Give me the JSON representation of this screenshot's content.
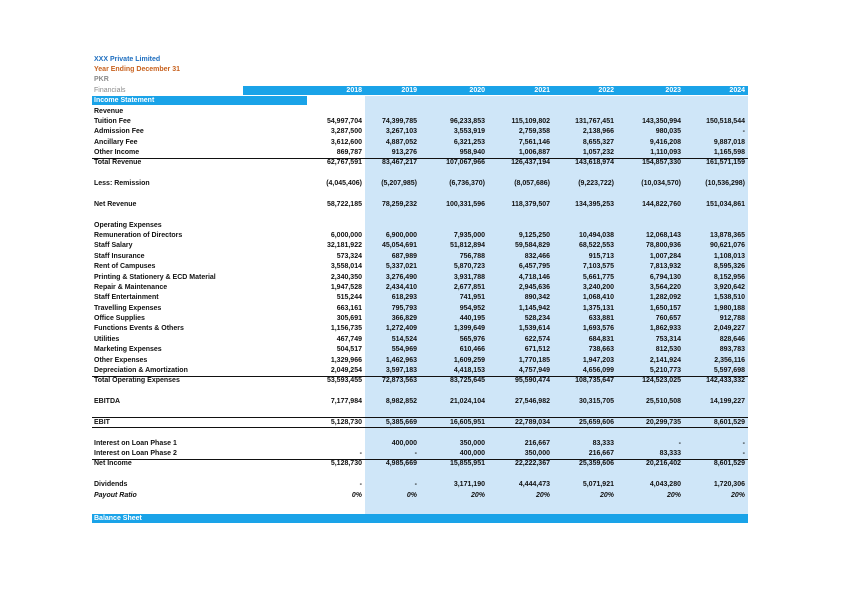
{
  "header": {
    "company": "XXX Private Limited",
    "period": "Year Ending December 31",
    "currency": "PKR"
  },
  "table": {
    "label": "Financials",
    "years": [
      "2018",
      "2019",
      "2020",
      "2021",
      "2022",
      "2023",
      "2024"
    ],
    "section": "Income Statement",
    "rows": [
      {
        "label": "Revenue"
      },
      {
        "label": "Tuition Fee",
        "values": [
          "54,997,704",
          "74,399,785",
          "96,233,853",
          "115,109,802",
          "131,767,451",
          "143,350,994",
          "150,518,544"
        ]
      },
      {
        "label": "Admission Fee",
        "values": [
          "3,287,500",
          "3,267,103",
          "3,553,919",
          "2,759,358",
          "2,138,966",
          "980,035",
          "-"
        ]
      },
      {
        "label": "Ancillary Fee",
        "values": [
          "3,612,600",
          "4,887,052",
          "6,321,253",
          "7,561,146",
          "8,655,327",
          "9,416,208",
          "9,887,018"
        ]
      },
      {
        "label": "Other Income",
        "values": [
          "869,787",
          "913,276",
          "958,940",
          "1,006,887",
          "1,057,232",
          "1,110,093",
          "1,165,598"
        ]
      },
      {
        "label": "Total Revenue",
        "values": [
          "62,767,591",
          "83,467,217",
          "107,067,966",
          "126,437,194",
          "143,618,974",
          "154,857,330",
          "161,571,159"
        ]
      },
      {
        "label": "Less: Remission",
        "values": [
          "(4,045,406)",
          "(5,207,985)",
          "(6,736,370)",
          "(8,057,686)",
          "(9,223,722)",
          "(10,034,570)",
          "(10,536,298)"
        ]
      },
      {
        "label": "Net Revenue",
        "values": [
          "58,722,185",
          "78,259,232",
          "100,331,596",
          "118,379,507",
          "134,395,253",
          "144,822,760",
          "151,034,861"
        ]
      },
      {
        "label": "Operating Expenses"
      },
      {
        "label": "Remuneration of Directors",
        "values": [
          "6,000,000",
          "6,900,000",
          "7,935,000",
          "9,125,250",
          "10,494,038",
          "12,068,143",
          "13,878,365"
        ]
      },
      {
        "label": "Staff Salary",
        "values": [
          "32,181,922",
          "45,054,691",
          "51,812,894",
          "59,584,829",
          "68,522,553",
          "78,800,936",
          "90,621,076"
        ]
      },
      {
        "label": "Staff Insurance",
        "values": [
          "573,324",
          "687,989",
          "756,788",
          "832,466",
          "915,713",
          "1,007,284",
          "1,108,013"
        ]
      },
      {
        "label": "Rent of Campuses",
        "values": [
          "3,558,014",
          "5,337,021",
          "5,870,723",
          "6,457,795",
          "7,103,575",
          "7,813,932",
          "8,595,326"
        ]
      },
      {
        "label": "Printing & Stationery & ECD Material",
        "values": [
          "2,340,350",
          "3,276,490",
          "3,931,788",
          "4,718,146",
          "5,661,775",
          "6,794,130",
          "8,152,956"
        ]
      },
      {
        "label": "Repair & Maintenance",
        "values": [
          "1,947,528",
          "2,434,410",
          "2,677,851",
          "2,945,636",
          "3,240,200",
          "3,564,220",
          "3,920,642"
        ]
      },
      {
        "label": "Staff Entertainment",
        "values": [
          "515,244",
          "618,293",
          "741,951",
          "890,342",
          "1,068,410",
          "1,282,092",
          "1,538,510"
        ]
      },
      {
        "label": "Travelling Expenses",
        "values": [
          "663,161",
          "795,793",
          "954,952",
          "1,145,942",
          "1,375,131",
          "1,650,157",
          "1,980,188"
        ]
      },
      {
        "label": "Office Supplies",
        "values": [
          "305,691",
          "366,829",
          "440,195",
          "528,234",
          "633,881",
          "760,657",
          "912,788"
        ]
      },
      {
        "label": "Functions Events & Others",
        "values": [
          "1,156,735",
          "1,272,409",
          "1,399,649",
          "1,539,614",
          "1,693,576",
          "1,862,933",
          "2,049,227"
        ]
      },
      {
        "label": "Utilities",
        "values": [
          "467,749",
          "514,524",
          "565,976",
          "622,574",
          "684,831",
          "753,314",
          "828,646"
        ]
      },
      {
        "label": "Marketing Expenses",
        "values": [
          "504,517",
          "554,969",
          "610,466",
          "671,512",
          "738,663",
          "812,530",
          "893,783"
        ]
      },
      {
        "label": "Other Expenses",
        "values": [
          "1,329,966",
          "1,462,963",
          "1,609,259",
          "1,770,185",
          "1,947,203",
          "2,141,924",
          "2,356,116"
        ]
      },
      {
        "label": "Depreciation & Amortization",
        "values": [
          "2,049,254",
          "3,597,183",
          "4,418,153",
          "4,757,949",
          "4,656,099",
          "5,210,773",
          "5,597,698"
        ]
      },
      {
        "label": "Total Operating Expenses",
        "values": [
          "53,593,455",
          "72,873,563",
          "83,725,645",
          "95,590,474",
          "108,735,647",
          "124,523,025",
          "142,433,332"
        ]
      },
      {
        "label": "EBITDA",
        "values": [
          "7,177,984",
          "8,982,852",
          "21,024,104",
          "27,546,982",
          "30,315,705",
          "25,510,508",
          "14,199,227"
        ]
      },
      {
        "label": "EBIT",
        "values": [
          "5,128,730",
          "5,385,669",
          "16,605,951",
          "22,789,034",
          "25,659,606",
          "20,299,735",
          "8,601,529"
        ]
      },
      {
        "label": "Interest on Loan Phase 1",
        "values": [
          null,
          "400,000",
          "350,000",
          "216,667",
          "83,333",
          "-",
          "-"
        ]
      },
      {
        "label": "Interest on Loan Phase 2",
        "values": [
          "-",
          "-",
          "400,000",
          "350,000",
          "216,667",
          "83,333",
          "-"
        ]
      },
      {
        "label": "Net Income",
        "values": [
          "5,128,730",
          "4,985,669",
          "15,855,951",
          "22,222,367",
          "25,359,606",
          "20,216,402",
          "8,601,529"
        ]
      },
      {
        "label": "Dividends",
        "values": [
          "-",
          "-",
          "3,171,190",
          "4,444,473",
          "5,071,921",
          "4,043,280",
          "1,720,306"
        ]
      },
      {
        "label": "Payout Ratio",
        "values": [
          "0%",
          "0%",
          "20%",
          "20%",
          "20%",
          "20%",
          "20%"
        ]
      }
    ]
  },
  "next_section": "Balance Sheet"
}
